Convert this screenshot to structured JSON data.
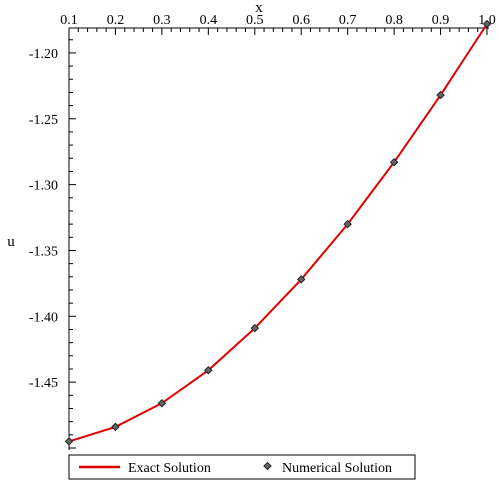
{
  "chart_data": {
    "type": "line",
    "xlabel": "x",
    "ylabel": "u",
    "xlim": [
      0.1,
      1.0
    ],
    "ylim": [
      -1.5,
      -1.175
    ],
    "x_ticks": [
      "0.1",
      "0.2",
      "0.3",
      "0.4",
      "0.5",
      "0.6",
      "0.7",
      "0.8",
      "0.9",
      "1.0"
    ],
    "y_ticks": [
      "-1.20",
      "-1.25",
      "-1.30",
      "-1.35",
      "-1.40",
      "-1.45"
    ],
    "x_axis_position": "top",
    "grid": false,
    "legend_position": "bottom",
    "x": [
      0.1,
      0.2,
      0.3,
      0.4,
      0.5,
      0.6,
      0.7,
      0.8,
      0.9,
      1.0
    ],
    "series": [
      {
        "name": "Exact Solution",
        "style": "line",
        "color": "#e00000",
        "values": [
          -1.495,
          -1.484,
          -1.466,
          -1.441,
          -1.409,
          -1.372,
          -1.33,
          -1.283,
          -1.232,
          -1.178
        ]
      },
      {
        "name": "Numerical Solution",
        "style": "markers",
        "color": "#333333",
        "values": [
          -1.495,
          -1.484,
          -1.466,
          -1.441,
          -1.409,
          -1.372,
          -1.33,
          -1.283,
          -1.232,
          -1.178
        ]
      }
    ]
  }
}
